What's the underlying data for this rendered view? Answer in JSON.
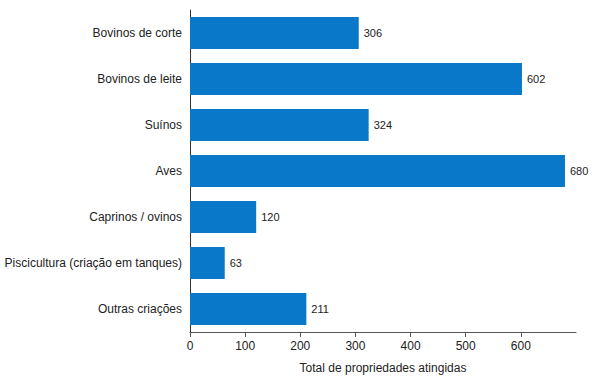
{
  "chart_data": {
    "type": "bar",
    "orientation": "horizontal",
    "x_label": "Total de propriedades atingidas",
    "categories": [
      "Bovinos de corte",
      "Bovinos de leite",
      "Suínos",
      "Aves",
      "Caprinos / ovinos",
      "Piscicultura (criação em tanques)",
      "Outras criações"
    ],
    "values": [
      306,
      602,
      324,
      680,
      120,
      63,
      211
    ],
    "color": "#0a78c8",
    "xlim": [
      0,
      700
    ],
    "xticks": [
      0,
      100,
      200,
      300,
      400,
      500,
      600
    ],
    "grid": false,
    "data_labels": true
  }
}
